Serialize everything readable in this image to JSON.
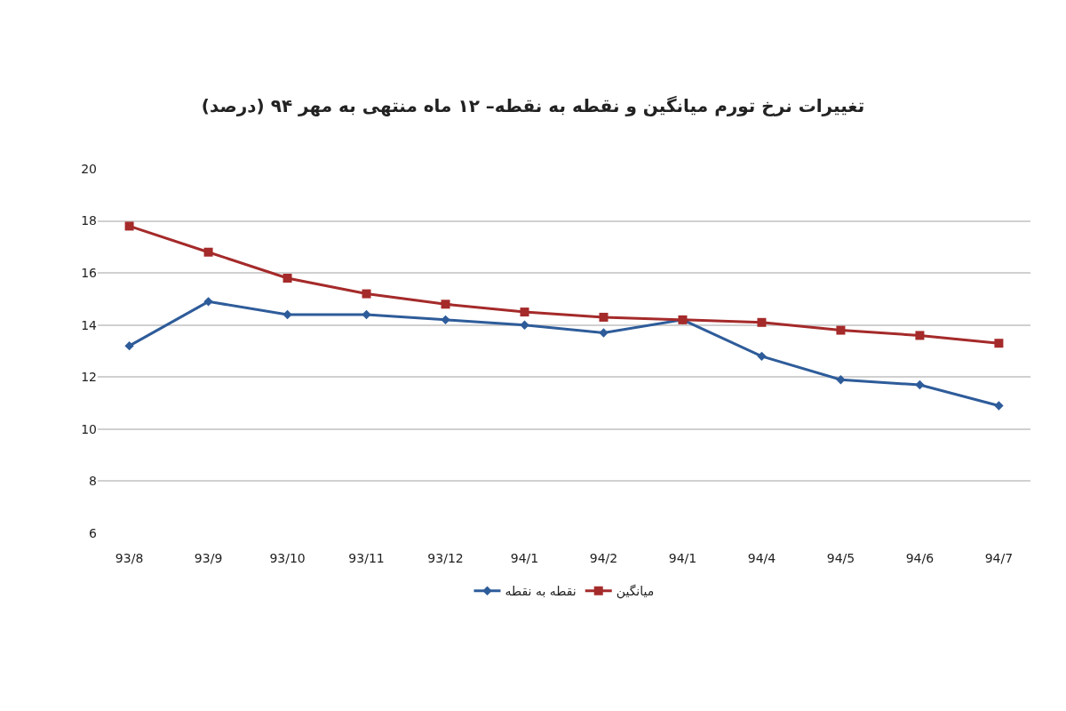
{
  "chart_data": {
    "type": "line",
    "title": "تغییرات نرخ تورم میانگین و نقطه به نقطه– ۱۲ ماه منتهی به مهر ۹۴ (درصد)",
    "categories": [
      "93/8",
      "93/9",
      "93/10",
      "93/11",
      "93/12",
      "94/1",
      "94/2",
      "94/1",
      "94/4",
      "94/5",
      "94/6",
      "94/7"
    ],
    "series": [
      {
        "name": "نقطه به نقطه",
        "color": "#2e5c9a",
        "marker": "diamond",
        "values": [
          13.2,
          14.9,
          14.4,
          14.4,
          14.2,
          14.0,
          13.7,
          14.2,
          12.8,
          11.9,
          11.7,
          10.9
        ]
      },
      {
        "name": "میانگین",
        "color": "#a52a2a",
        "marker": "square",
        "values": [
          17.8,
          16.8,
          15.8,
          15.2,
          14.8,
          14.5,
          14.3,
          14.2,
          14.1,
          13.8,
          13.6,
          13.3
        ]
      }
    ],
    "ylim": [
      6,
      20
    ],
    "yticks": [
      6,
      8,
      10,
      12,
      14,
      16,
      18,
      20
    ],
    "grid": "y",
    "legend": "bottom"
  }
}
